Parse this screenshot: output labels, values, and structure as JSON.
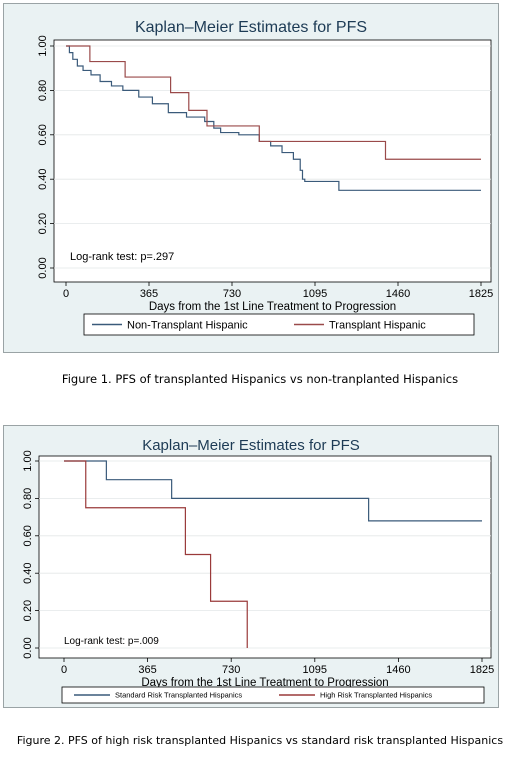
{
  "chart_data": [
    {
      "type": "line",
      "title": "Kaplan–Meier Estimates for PFS",
      "xlabel": "Days from the 1st Line Treatment to Progression",
      "ylabel": "",
      "xlim": [
        0,
        1825
      ],
      "ylim": [
        0,
        1
      ],
      "xticks": [
        "0",
        "365",
        "730",
        "1095",
        "1460",
        "1825"
      ],
      "yticks": [
        "0.00",
        "0.20",
        "0.40",
        "0.60",
        "0.80",
        "1.00"
      ],
      "annotation": "Log-rank test: p=.297",
      "legend_position": "bottom",
      "series": [
        {
          "name": "Non-Transplant Hispanic",
          "color": "#3a5a7a",
          "points": [
            [
              0,
              1.0
            ],
            [
              15,
              0.97
            ],
            [
              30,
              0.94
            ],
            [
              50,
              0.91
            ],
            [
              75,
              0.89
            ],
            [
              110,
              0.87
            ],
            [
              150,
              0.84
            ],
            [
              200,
              0.82
            ],
            [
              250,
              0.8
            ],
            [
              320,
              0.77
            ],
            [
              380,
              0.74
            ],
            [
              450,
              0.7
            ],
            [
              530,
              0.68
            ],
            [
              610,
              0.66
            ],
            [
              650,
              0.63
            ],
            [
              680,
              0.61
            ],
            [
              760,
              0.6
            ],
            [
              850,
              0.57
            ],
            [
              900,
              0.55
            ],
            [
              950,
              0.52
            ],
            [
              1000,
              0.49
            ],
            [
              1030,
              0.44
            ],
            [
              1040,
              0.4
            ],
            [
              1050,
              0.39
            ],
            [
              1200,
              0.35
            ],
            [
              1825,
              0.35
            ]
          ]
        },
        {
          "name": "Transplant Hispanic",
          "color": "#9a4a4a",
          "points": [
            [
              0,
              1.0
            ],
            [
              50,
              1.0
            ],
            [
              105,
              0.93
            ],
            [
              260,
              0.86
            ],
            [
              460,
              0.79
            ],
            [
              540,
              0.71
            ],
            [
              620,
              0.64
            ],
            [
              740,
              0.64
            ],
            [
              850,
              0.57
            ],
            [
              1400,
              0.57
            ],
            [
              1405,
              0.49
            ],
            [
              1825,
              0.49
            ]
          ]
        }
      ]
    },
    {
      "type": "line",
      "title": "Kaplan–Meier Estimates for PFS",
      "xlabel": "Days from the 1st Line Treatment to Progression",
      "ylabel": "",
      "xlim": [
        0,
        1825
      ],
      "ylim": [
        0,
        1
      ],
      "xticks": [
        "0",
        "365",
        "730",
        "1095",
        "1460",
        "1825"
      ],
      "yticks": [
        "0.00",
        "0.20",
        "0.40",
        "0.60",
        "0.80",
        "1.00"
      ],
      "annotation": "Log-rank test: p=.009",
      "legend_position": "bottom",
      "series": [
        {
          "name": "Standard Risk Transplanted Hispanics",
          "color": "#3a5a7a",
          "points": [
            [
              0,
              1.0
            ],
            [
              185,
              1.0
            ],
            [
              185,
              0.9
            ],
            [
              470,
              0.9
            ],
            [
              470,
              0.8
            ],
            [
              1330,
              0.8
            ],
            [
              1330,
              0.68
            ],
            [
              1825,
              0.68
            ]
          ]
        },
        {
          "name": "High Risk Transplanted Hispanics",
          "color": "#9a3a3a",
          "points": [
            [
              0,
              1.0
            ],
            [
              95,
              1.0
            ],
            [
              95,
              0.75
            ],
            [
              530,
              0.75
            ],
            [
              530,
              0.5
            ],
            [
              640,
              0.5
            ],
            [
              640,
              0.25
            ],
            [
              800,
              0.25
            ],
            [
              800,
              0.0
            ]
          ]
        }
      ]
    }
  ],
  "captions": {
    "figure1": "Figure 1. PFS of transplanted Hispanics vs non-tranplanted Hispanics",
    "figure2": "Figure 2. PFS of high risk transplanted Hispanics vs standard risk transplanted Hispanics"
  }
}
